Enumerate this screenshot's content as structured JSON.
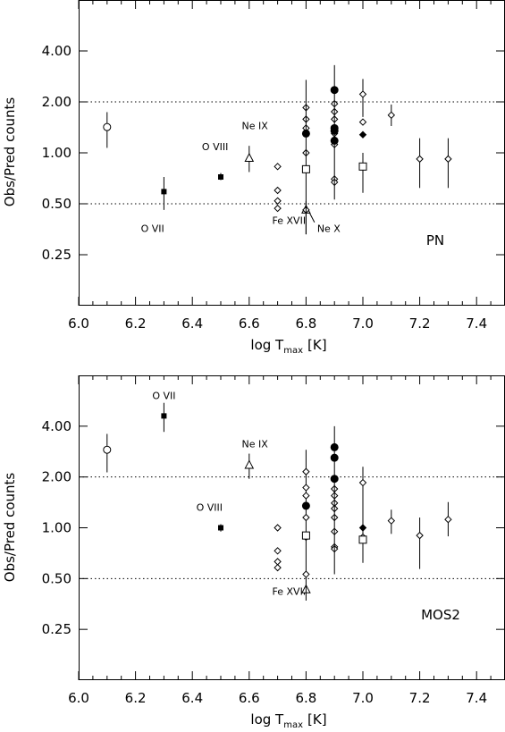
{
  "chart_data": [
    {
      "type": "scatter",
      "panel_label": "PN",
      "xlabel": {
        "main": "log T",
        "sub": "max",
        "unit": "[K]"
      },
      "ylabel": "Obs/Pred counts",
      "xlim": [
        6.0,
        7.5
      ],
      "ylim": [
        0.125,
        8.0
      ],
      "yscale": "log",
      "xticks": [
        "6.0",
        "6.2",
        "6.4",
        "6.6",
        "6.8",
        "7.0",
        "7.2",
        "7.4"
      ],
      "yticks": [
        "0.25",
        "0.50",
        "1.00",
        "2.00",
        "4.00"
      ],
      "reference_lines": [
        0.5,
        2.0
      ],
      "grid": false,
      "annotations": [
        {
          "text": "O VII",
          "x": 6.26,
          "y": 0.34
        },
        {
          "text": "O VIII",
          "x": 6.48,
          "y": 1.04
        },
        {
          "text": "Ne IX",
          "x": 6.62,
          "y": 1.38
        },
        {
          "text": "Fe XVII",
          "x": 6.74,
          "y": 0.38
        },
        {
          "text": "Ne X",
          "x": 6.88,
          "y": 0.34,
          "leader_to": {
            "x": 6.81,
            "y": 0.45
          }
        }
      ],
      "series": [
        {
          "marker": "open-circle",
          "points": [
            {
              "x": 6.1,
              "y": 1.42,
              "lo": 1.07,
              "hi": 1.74
            }
          ]
        },
        {
          "marker": "filled-square",
          "points": [
            {
              "x": 6.3,
              "y": 0.59,
              "lo": 0.46,
              "hi": 0.72
            },
            {
              "x": 6.5,
              "y": 0.72,
              "lo": 0.69,
              "hi": 0.76
            }
          ]
        },
        {
          "marker": "open-triangle",
          "points": [
            {
              "x": 6.6,
              "y": 0.93,
              "lo": 0.77,
              "hi": 1.1
            },
            {
              "x": 6.8,
              "y": 0.46,
              "lo": 0.33,
              "hi": 0.52
            }
          ]
        },
        {
          "marker": "open-diamond",
          "points": [
            {
              "x": 6.7,
              "y": 0.83,
              "lo": 0.83,
              "hi": 0.83
            },
            {
              "x": 6.7,
              "y": 0.6,
              "lo": 0.6,
              "hi": 0.6
            },
            {
              "x": 6.7,
              "y": 0.52,
              "lo": 0.52,
              "hi": 0.52
            },
            {
              "x": 6.7,
              "y": 0.47,
              "lo": 0.47,
              "hi": 0.47
            },
            {
              "x": 6.8,
              "y": 1.85,
              "lo": 1.85,
              "hi": 1.85
            },
            {
              "x": 6.8,
              "y": 1.58,
              "lo": 1.58,
              "hi": 1.58
            },
            {
              "x": 6.8,
              "y": 1.4,
              "lo": 1.4,
              "hi": 1.4
            },
            {
              "x": 6.8,
              "y": 1.0,
              "lo": 1.0,
              "hi": 1.0
            },
            {
              "x": 6.8,
              "y": 0.46,
              "lo": 0.46,
              "hi": 0.46
            },
            {
              "x": 6.9,
              "y": 1.95,
              "lo": 1.95,
              "hi": 1.95
            },
            {
              "x": 6.9,
              "y": 1.75,
              "lo": 1.75,
              "hi": 1.75
            },
            {
              "x": 6.9,
              "y": 1.58,
              "lo": 1.58,
              "hi": 1.58
            },
            {
              "x": 6.9,
              "y": 1.4,
              "lo": 1.4,
              "hi": 1.4
            },
            {
              "x": 6.9,
              "y": 1.3,
              "lo": 1.3,
              "hi": 1.3
            },
            {
              "x": 6.9,
              "y": 1.12,
              "lo": 1.12,
              "hi": 1.12
            },
            {
              "x": 6.9,
              "y": 0.7,
              "lo": 0.7,
              "hi": 0.7
            },
            {
              "x": 6.9,
              "y": 0.67,
              "lo": 0.67,
              "hi": 0.67
            },
            {
              "x": 7.0,
              "y": 2.22,
              "lo": 1.63,
              "hi": 2.73
            },
            {
              "x": 7.0,
              "y": 1.52,
              "lo": 1.52,
              "hi": 1.52
            },
            {
              "x": 7.1,
              "y": 1.67,
              "lo": 1.44,
              "hi": 1.93
            },
            {
              "x": 7.2,
              "y": 0.92,
              "lo": 0.62,
              "hi": 1.22
            },
            {
              "x": 7.3,
              "y": 0.92,
              "lo": 0.62,
              "hi": 1.22
            }
          ]
        },
        {
          "marker": "filled-circle",
          "points": [
            {
              "x": 6.8,
              "y": 1.3,
              "lo": 0.33,
              "hi": 2.7
            },
            {
              "x": 6.9,
              "y": 2.35,
              "lo": 0.53,
              "hi": 3.3
            },
            {
              "x": 6.9,
              "y": 1.4,
              "lo": 1.4,
              "hi": 1.4
            },
            {
              "x": 6.9,
              "y": 1.35,
              "lo": 1.35,
              "hi": 1.35
            },
            {
              "x": 6.9,
              "y": 1.18,
              "lo": 1.18,
              "hi": 1.18
            }
          ]
        },
        {
          "marker": "open-square",
          "points": [
            {
              "x": 6.8,
              "y": 0.8,
              "lo": 0.8,
              "hi": 0.8
            },
            {
              "x": 7.0,
              "y": 0.83,
              "lo": 0.58,
              "hi": 1.0
            }
          ]
        },
        {
          "marker": "filled-diamond",
          "points": [
            {
              "x": 7.0,
              "y": 1.28,
              "lo": 1.28,
              "hi": 1.28
            }
          ]
        }
      ]
    },
    {
      "type": "scatter",
      "panel_label": "MOS2",
      "xlabel": {
        "main": "log T",
        "sub": "max",
        "unit": "[K]"
      },
      "ylabel": "Obs/Pred counts",
      "xlim": [
        6.0,
        7.5
      ],
      "ylim": [
        0.125,
        8.0
      ],
      "yscale": "log",
      "xticks": [
        "6.0",
        "6.2",
        "6.4",
        "6.6",
        "6.8",
        "7.0",
        "7.2",
        "7.4"
      ],
      "yticks": [
        "0.25",
        "0.50",
        "1.00",
        "2.00",
        "4.00"
      ],
      "reference_lines": [
        0.5,
        2.0
      ],
      "grid": false,
      "annotations": [
        {
          "text": "O VII",
          "x": 6.3,
          "y": 5.8
        },
        {
          "text": "Ne IX",
          "x": 6.62,
          "y": 3.0
        },
        {
          "text": "O VIII",
          "x": 6.46,
          "y": 1.26
        },
        {
          "text": "Fe XVII",
          "x": 6.74,
          "y": 0.4
        }
      ],
      "series": [
        {
          "marker": "open-circle",
          "points": [
            {
              "x": 6.1,
              "y": 2.9,
              "lo": 2.13,
              "hi": 3.6
            }
          ]
        },
        {
          "marker": "filled-square",
          "points": [
            {
              "x": 6.3,
              "y": 4.6,
              "lo": 3.7,
              "hi": 5.5
            },
            {
              "x": 6.5,
              "y": 1.0,
              "lo": 0.95,
              "hi": 1.05
            }
          ]
        },
        {
          "marker": "open-triangle",
          "points": [
            {
              "x": 6.6,
              "y": 2.35,
              "lo": 1.95,
              "hi": 2.75
            },
            {
              "x": 6.8,
              "y": 0.43,
              "lo": 0.43,
              "hi": 0.43
            }
          ]
        },
        {
          "marker": "open-diamond",
          "points": [
            {
              "x": 6.7,
              "y": 1.0,
              "lo": 1.0,
              "hi": 1.0
            },
            {
              "x": 6.7,
              "y": 0.73,
              "lo": 0.73,
              "hi": 0.73
            },
            {
              "x": 6.7,
              "y": 0.63,
              "lo": 0.63,
              "hi": 0.63
            },
            {
              "x": 6.7,
              "y": 0.58,
              "lo": 0.58,
              "hi": 0.58
            },
            {
              "x": 6.8,
              "y": 2.15,
              "lo": 0.37,
              "hi": 2.9
            },
            {
              "x": 6.8,
              "y": 1.73,
              "lo": 1.73,
              "hi": 1.73
            },
            {
              "x": 6.8,
              "y": 1.55,
              "lo": 1.55,
              "hi": 1.55
            },
            {
              "x": 6.8,
              "y": 1.15,
              "lo": 1.15,
              "hi": 1.15
            },
            {
              "x": 6.8,
              "y": 0.88,
              "lo": 0.88,
              "hi": 0.88
            },
            {
              "x": 6.8,
              "y": 0.53,
              "lo": 0.53,
              "hi": 0.53
            },
            {
              "x": 6.9,
              "y": 1.7,
              "lo": 1.7,
              "hi": 1.7
            },
            {
              "x": 6.9,
              "y": 1.55,
              "lo": 1.55,
              "hi": 1.55
            },
            {
              "x": 6.9,
              "y": 1.4,
              "lo": 1.4,
              "hi": 1.4
            },
            {
              "x": 6.9,
              "y": 1.3,
              "lo": 1.3,
              "hi": 1.3
            },
            {
              "x": 6.9,
              "y": 1.15,
              "lo": 1.15,
              "hi": 1.15
            },
            {
              "x": 6.9,
              "y": 0.95,
              "lo": 0.95,
              "hi": 0.95
            },
            {
              "x": 6.9,
              "y": 0.77,
              "lo": 0.77,
              "hi": 0.77
            },
            {
              "x": 6.9,
              "y": 0.75,
              "lo": 0.75,
              "hi": 0.75
            },
            {
              "x": 7.0,
              "y": 1.85,
              "lo": 0.62,
              "hi": 2.3
            },
            {
              "x": 7.0,
              "y": 0.88,
              "lo": 0.88,
              "hi": 0.88
            },
            {
              "x": 7.1,
              "y": 1.1,
              "lo": 0.92,
              "hi": 1.28
            },
            {
              "x": 7.2,
              "y": 0.9,
              "lo": 0.57,
              "hi": 1.15
            },
            {
              "x": 7.3,
              "y": 1.12,
              "lo": 0.89,
              "hi": 1.42
            }
          ]
        },
        {
          "marker": "filled-circle",
          "points": [
            {
              "x": 6.8,
              "y": 1.35,
              "lo": 1.35,
              "hi": 1.35
            },
            {
              "x": 6.9,
              "y": 3.0,
              "lo": 0.53,
              "hi": 4.0
            },
            {
              "x": 6.9,
              "y": 2.6,
              "lo": 2.6,
              "hi": 2.6
            },
            {
              "x": 6.9,
              "y": 1.95,
              "lo": 1.95,
              "hi": 1.95
            }
          ]
        },
        {
          "marker": "open-square",
          "points": [
            {
              "x": 6.8,
              "y": 0.9,
              "lo": 0.9,
              "hi": 0.9
            },
            {
              "x": 7.0,
              "y": 0.85,
              "lo": 0.85,
              "hi": 0.85
            }
          ]
        },
        {
          "marker": "filled-diamond",
          "points": [
            {
              "x": 7.0,
              "y": 1.0,
              "lo": 1.0,
              "hi": 1.0
            }
          ]
        }
      ]
    }
  ]
}
